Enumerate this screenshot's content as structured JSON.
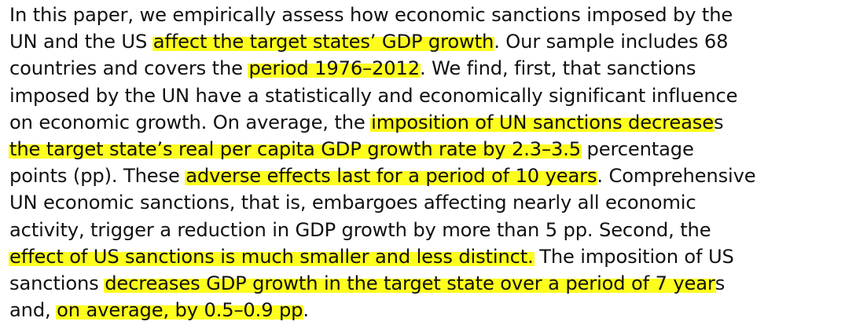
{
  "paragraph": {
    "lines": [
      [
        {
          "t": "In this paper, we empirically assess how economic sanctions imposed by the",
          "h": false
        }
      ],
      [
        {
          "t": "UN and the US ",
          "h": false
        },
        {
          "t": "affect the target states’ GDP growth",
          "h": true
        },
        {
          "t": ". Our sample includes 68",
          "h": false
        }
      ],
      [
        {
          "t": "countries and covers the ",
          "h": false
        },
        {
          "t": "period 1976–2012",
          "h": true
        },
        {
          "t": ". We find, first, that sanctions",
          "h": false
        }
      ],
      [
        {
          "t": "imposed by the UN have a statistically and economically significant influence",
          "h": false
        }
      ],
      [
        {
          "t": "on economic growth. On average, the ",
          "h": false
        },
        {
          "t": "imposition of UN sanctions decrease",
          "h": true
        },
        {
          "t": "s",
          "h": false
        }
      ],
      [
        {
          "t": "the target state’s real per capita GDP growth rate by 2.3–3.5",
          "h": true
        },
        {
          "t": " percentage",
          "h": false
        }
      ],
      [
        {
          "t": "points (pp). These ",
          "h": false
        },
        {
          "t": "adverse effects last for a period of 10 years",
          "h": true
        },
        {
          "t": ". Comprehensive",
          "h": false
        }
      ],
      [
        {
          "t": "UN economic sanctions, that is, embargoes affecting nearly all economic",
          "h": false
        }
      ],
      [
        {
          "t": "activity, trigger a reduction in GDP growth by more than 5 pp. Second, the",
          "h": false
        }
      ],
      [
        {
          "t": "effect of US sanctions is much smaller and less distinct.",
          "h": true
        },
        {
          "t": " The imposition of US",
          "h": false
        }
      ],
      [
        {
          "t": "sanctions ",
          "h": false
        },
        {
          "t": "decreases GDP growth in the target state over a period of 7 year",
          "h": true
        },
        {
          "t": "s",
          "h": false
        }
      ],
      [
        {
          "t": "and, ",
          "h": false
        },
        {
          "t": "on average, by 0.5–0.9 pp",
          "h": true
        },
        {
          "t": ".",
          "h": false
        }
      ]
    ]
  },
  "colors": {
    "text": "#111111",
    "highlight": "#fdfd1e",
    "background": "#ffffff"
  }
}
